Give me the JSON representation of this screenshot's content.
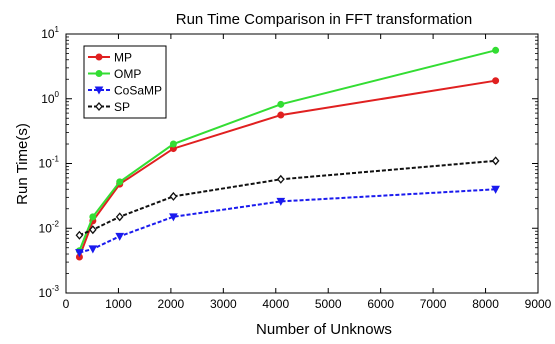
{
  "chart_data": {
    "type": "line",
    "title": "Run Time Comparison in FFT transformation",
    "xlabel": "Number of Unknows",
    "ylabel": "Run Time(s)",
    "xlim": [
      0,
      9000
    ],
    "ylim": [
      0.001,
      10
    ],
    "y_scale": "log",
    "grid": false,
    "legend_position": "top-left",
    "x_ticks": [
      "0",
      "1000",
      "2000",
      "3000",
      "4000",
      "5000",
      "6000",
      "7000",
      "8000",
      "9000"
    ],
    "y_ticks": [
      {
        "base": "10",
        "exp": "-3",
        "value": 0.001
      },
      {
        "base": "10",
        "exp": "-2",
        "value": 0.01
      },
      {
        "base": "10",
        "exp": "-1",
        "value": 0.1
      },
      {
        "base": "10",
        "exp": "0",
        "value": 1
      },
      {
        "base": "10",
        "exp": "1",
        "value": 10
      }
    ],
    "x": [
      256,
      512,
      1024,
      2048,
      4096,
      8192
    ],
    "series": [
      {
        "name": "MP",
        "color": "#e02020",
        "marker": "circle",
        "dash": "solid",
        "values": [
          0.0036,
          0.013,
          0.048,
          0.17,
          0.56,
          1.9
        ]
      },
      {
        "name": "OMP",
        "color": "#33dd33",
        "marker": "circle",
        "dash": "solid",
        "values": [
          0.0045,
          0.015,
          0.052,
          0.2,
          0.82,
          5.6
        ]
      },
      {
        "name": "CoSaMP",
        "color": "#1a1aee",
        "marker": "triangle-down",
        "dash": "dashed",
        "values": [
          0.0042,
          0.0048,
          0.0075,
          0.015,
          0.026,
          0.04
        ]
      },
      {
        "name": "SP",
        "color": "#111111",
        "marker": "diamond",
        "dash": "dashed",
        "values": [
          0.0078,
          0.0095,
          0.015,
          0.031,
          0.057,
          0.11
        ]
      }
    ]
  }
}
